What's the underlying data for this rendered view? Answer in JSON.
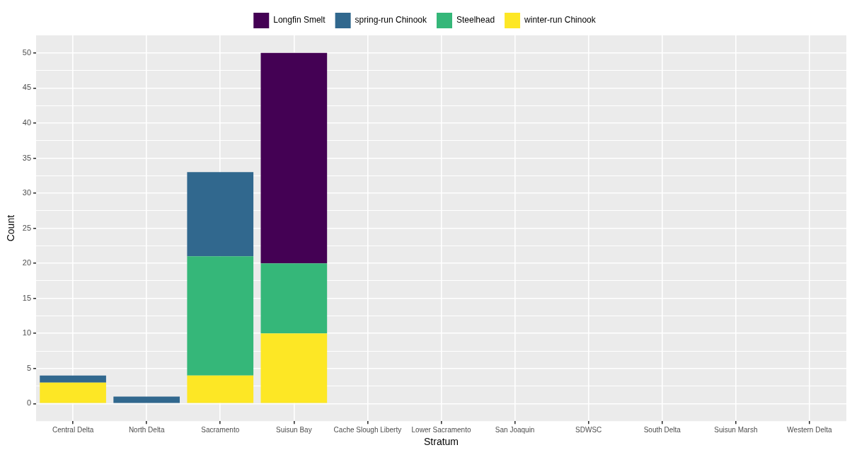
{
  "chart_data": {
    "type": "bar",
    "xlabel": "Stratum",
    "ylabel": "Count",
    "stacked": true,
    "legend": "top",
    "grid": true,
    "categories": [
      "Central Delta",
      "North Delta",
      "Sacramento",
      "Suisun Bay",
      "Cache Slough Liberty",
      "Lower Sacramento",
      "San Joaquin",
      "SDWSC",
      "South Delta",
      "Suisun Marsh",
      "Western Delta"
    ],
    "ylim": [
      -2.5,
      52.5
    ],
    "yticks": [
      0,
      {
        "value": 2.5,
        "label": null
      },
      5,
      {
        "value": 7.5,
        "label": null
      },
      10,
      {
        "value": 12.5,
        "label": null
      },
      15,
      {
        "value": 17.5,
        "label": null
      },
      20,
      {
        "value": 22.5,
        "label": null
      },
      25,
      {
        "value": 27.5,
        "label": null
      },
      30,
      {
        "value": 32.5,
        "label": null
      },
      35,
      {
        "value": 37.5,
        "label": null
      },
      40,
      {
        "value": 42.5,
        "label": null
      },
      45,
      {
        "value": 47.5,
        "label": null
      },
      50
    ],
    "series": [
      {
        "name": "winter-run Chinook",
        "color": "#fde725",
        "values": [
          3,
          0,
          4,
          10,
          0,
          0,
          0,
          0,
          0,
          0,
          0
        ]
      },
      {
        "name": "Steelhead",
        "color": "#35b779",
        "values": [
          0,
          0,
          17,
          10,
          0,
          0,
          0,
          0,
          0,
          0,
          0
        ]
      },
      {
        "name": "spring-run Chinook",
        "color": "#31688e",
        "values": [
          1,
          1,
          12,
          0,
          0,
          0,
          0,
          0,
          0,
          0,
          0
        ]
      },
      {
        "name": "Longfin Smelt",
        "color": "#440154",
        "values": [
          0,
          0,
          0,
          30,
          0,
          0,
          0,
          0,
          0,
          0,
          0
        ]
      }
    ]
  }
}
